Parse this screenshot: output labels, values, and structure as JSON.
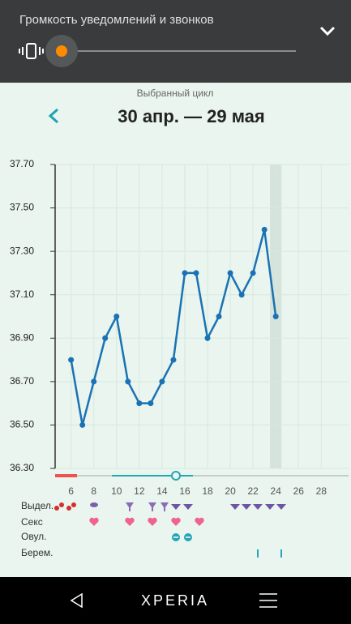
{
  "volume_panel": {
    "title": "Громкость уведомлений и звонков"
  },
  "header": {
    "subtitle": "Выбранный цикл",
    "title": "30 апр. — 29 мая"
  },
  "chart_data": {
    "type": "line",
    "x": [
      6,
      7,
      8,
      9,
      10,
      11,
      12,
      13,
      14,
      15,
      16,
      17,
      18,
      19,
      20,
      21,
      22,
      23,
      24
    ],
    "series": [
      {
        "color": "#1a72b4",
        "values": [
          36.8,
          36.5,
          36.7,
          36.9,
          37.0,
          36.7,
          36.6,
          36.6,
          36.7,
          36.8,
          37.2,
          37.2,
          36.9,
          37.0,
          37.2,
          37.1,
          37.2,
          37.4,
          37.0
        ]
      }
    ],
    "xlim": [
      4.6,
      30.4
    ],
    "xticks": [
      6,
      8,
      10,
      12,
      14,
      16,
      18,
      20,
      22,
      24,
      26,
      28
    ],
    "ylim": [
      36.3,
      37.7
    ],
    "yticks": [
      {
        "value": 36.3,
        "label": "36.30"
      },
      {
        "value": 36.5,
        "label": "36.50"
      },
      {
        "value": 36.7,
        "label": "36.70"
      },
      {
        "value": 36.9,
        "label": "36.90"
      },
      {
        "value": 37.1,
        "label": "37.10"
      },
      {
        "value": 37.3,
        "label": "37.30"
      },
      {
        "value": 37.5,
        "label": "37.50"
      },
      {
        "value": 37.7,
        "label": "37.70"
      }
    ],
    "grid": true,
    "highlight_x": 24
  },
  "rows": [
    "Выдел.",
    "Секс",
    "Овул.",
    "Берем."
  ],
  "nav": {
    "brand": "XPERIA"
  }
}
